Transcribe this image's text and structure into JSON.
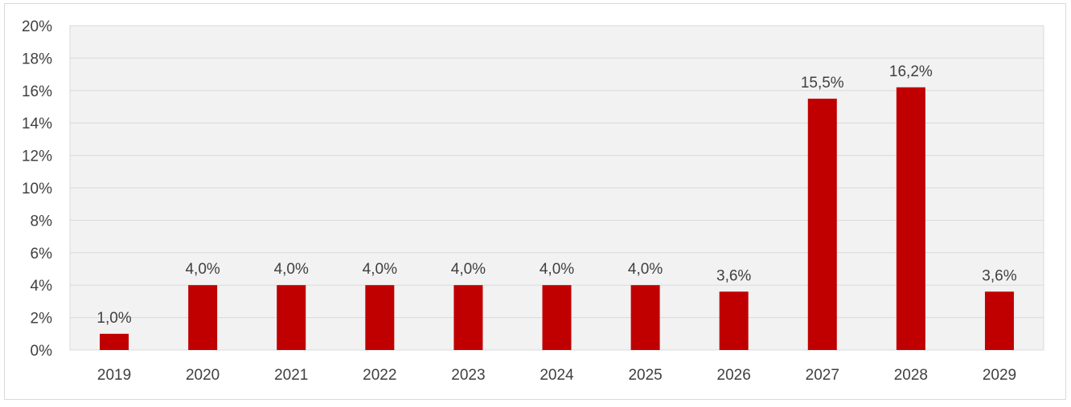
{
  "chart_data": {
    "type": "bar",
    "categories": [
      "2019",
      "2020",
      "2021",
      "2022",
      "2023",
      "2024",
      "2025",
      "2026",
      "2027",
      "2028",
      "2029"
    ],
    "values": [
      1.0,
      4.0,
      4.0,
      4.0,
      4.0,
      4.0,
      4.0,
      3.6,
      15.5,
      16.2,
      3.6
    ],
    "data_labels": [
      "1,0%",
      "4,0%",
      "4,0%",
      "4,0%",
      "4,0%",
      "4,0%",
      "4,0%",
      "3,6%",
      "15,5%",
      "16,2%",
      "3,6%"
    ],
    "y_ticks": [
      0,
      2,
      4,
      6,
      8,
      10,
      12,
      14,
      16,
      18,
      20
    ],
    "y_tick_labels": [
      "0%",
      "2%",
      "4%",
      "6%",
      "8%",
      "10%",
      "12%",
      "14%",
      "16%",
      "18%",
      "20%"
    ],
    "ylim": [
      0,
      20
    ],
    "title": "",
    "xlabel": "",
    "ylabel": "",
    "grid": true,
    "legend": "none",
    "colors": {
      "bar": "#c00000",
      "plot_background": "#f2f2f2",
      "gridline": "#d9d9d9",
      "text": "#404040"
    }
  }
}
